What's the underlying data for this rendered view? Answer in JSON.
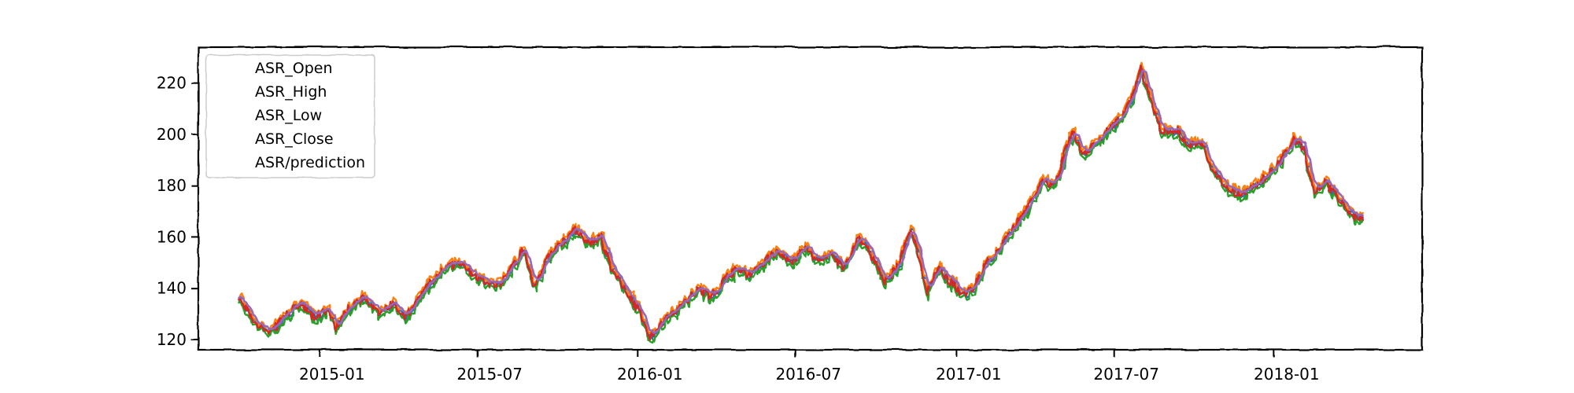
{
  "chart_data": {
    "type": "line",
    "title": "",
    "xlabel": "",
    "ylabel": "",
    "x_start": "2014-10-01",
    "x_end": "2018-04-15",
    "xlim": [
      "2014-08-15",
      "2018-06-20"
    ],
    "ylim": [
      116,
      234
    ],
    "yticks": [
      120,
      140,
      160,
      180,
      200,
      220
    ],
    "xticks": [
      {
        "date": "2015-01-01",
        "label": "2015-01"
      },
      {
        "date": "2015-07-01",
        "label": "2015-07"
      },
      {
        "date": "2016-01-01",
        "label": "2016-01"
      },
      {
        "date": "2016-07-01",
        "label": "2016-07"
      },
      {
        "date": "2017-01-01",
        "label": "2017-01"
      },
      {
        "date": "2017-07-01",
        "label": "2017-07"
      },
      {
        "date": "2018-01-01",
        "label": "2018-01"
      }
    ],
    "grid": false,
    "legend_position": "top-left",
    "close_anchors": [
      [
        "2014-10-01",
        135
      ],
      [
        "2014-10-20",
        127
      ],
      [
        "2014-11-05",
        122
      ],
      [
        "2014-11-25",
        130
      ],
      [
        "2014-12-10",
        134
      ],
      [
        "2014-12-25",
        129
      ],
      [
        "2015-01-10",
        131
      ],
      [
        "2015-01-20",
        125
      ],
      [
        "2015-02-05",
        133
      ],
      [
        "2015-02-20",
        136
      ],
      [
        "2015-03-10",
        130
      ],
      [
        "2015-03-25",
        134
      ],
      [
        "2015-04-10",
        128
      ],
      [
        "2015-04-25",
        136
      ],
      [
        "2015-05-10",
        143
      ],
      [
        "2015-05-25",
        148
      ],
      [
        "2015-06-10",
        150
      ],
      [
        "2015-06-25",
        146
      ],
      [
        "2015-07-10",
        143
      ],
      [
        "2015-07-25",
        141
      ],
      [
        "2015-08-10",
        148
      ],
      [
        "2015-08-22",
        155
      ],
      [
        "2015-09-05",
        140
      ],
      [
        "2015-09-20",
        152
      ],
      [
        "2015-10-05",
        157
      ],
      [
        "2015-10-20",
        163
      ],
      [
        "2015-11-05",
        158
      ],
      [
        "2015-11-20",
        160
      ],
      [
        "2015-12-01",
        149
      ],
      [
        "2015-12-15",
        141
      ],
      [
        "2016-01-05",
        130
      ],
      [
        "2016-01-15",
        121
      ],
      [
        "2016-02-01",
        128
      ],
      [
        "2016-02-20",
        132
      ],
      [
        "2016-03-10",
        140
      ],
      [
        "2016-03-25",
        137
      ],
      [
        "2016-04-10",
        143
      ],
      [
        "2016-04-25",
        148
      ],
      [
        "2016-05-10",
        145
      ],
      [
        "2016-05-25",
        150
      ],
      [
        "2016-06-10",
        155
      ],
      [
        "2016-06-25",
        149
      ],
      [
        "2016-07-10",
        156
      ],
      [
        "2016-07-25",
        151
      ],
      [
        "2016-08-10",
        153
      ],
      [
        "2016-08-25",
        148
      ],
      [
        "2016-09-10",
        160
      ],
      [
        "2016-09-25",
        153
      ],
      [
        "2016-10-10",
        142
      ],
      [
        "2016-10-25",
        148
      ],
      [
        "2016-11-10",
        162
      ],
      [
        "2016-11-20",
        152
      ],
      [
        "2016-11-28",
        138
      ],
      [
        "2016-12-10",
        148
      ],
      [
        "2016-12-25",
        143
      ],
      [
        "2017-01-10",
        137
      ],
      [
        "2017-01-20",
        140
      ],
      [
        "2017-02-05",
        150
      ],
      [
        "2017-02-20",
        156
      ],
      [
        "2017-03-10",
        164
      ],
      [
        "2017-03-25",
        172
      ],
      [
        "2017-04-10",
        182
      ],
      [
        "2017-04-25",
        180
      ],
      [
        "2017-05-05",
        192
      ],
      [
        "2017-05-15",
        202
      ],
      [
        "2017-05-25",
        192
      ],
      [
        "2017-06-10",
        196
      ],
      [
        "2017-06-25",
        203
      ],
      [
        "2017-07-10",
        206
      ],
      [
        "2017-07-20",
        214
      ],
      [
        "2017-08-01",
        226
      ],
      [
        "2017-08-15",
        210
      ],
      [
        "2017-08-25",
        201
      ],
      [
        "2017-09-10",
        202
      ],
      [
        "2017-09-25",
        196
      ],
      [
        "2017-10-10",
        196
      ],
      [
        "2017-10-25",
        184
      ],
      [
        "2017-11-10",
        179
      ],
      [
        "2017-11-25",
        176
      ],
      [
        "2017-12-10",
        180
      ],
      [
        "2017-12-25",
        184
      ],
      [
        "2018-01-10",
        190
      ],
      [
        "2018-01-25",
        198
      ],
      [
        "2018-02-05",
        194
      ],
      [
        "2018-02-15",
        178
      ],
      [
        "2018-02-28",
        181
      ],
      [
        "2018-03-15",
        176
      ],
      [
        "2018-03-25",
        170
      ],
      [
        "2018-04-05",
        167
      ],
      [
        "2018-04-15",
        167
      ]
    ],
    "series": [
      {
        "name": "ASR_Open",
        "color": "#1f77b4"
      },
      {
        "name": "ASR_High",
        "color": "#ff7f0e"
      },
      {
        "name": "ASR_Low",
        "color": "#2ca02c"
      },
      {
        "name": "ASR_Close",
        "color": "#d62728"
      },
      {
        "name": "ASR/prediction",
        "color": "#9467bd"
      }
    ]
  }
}
